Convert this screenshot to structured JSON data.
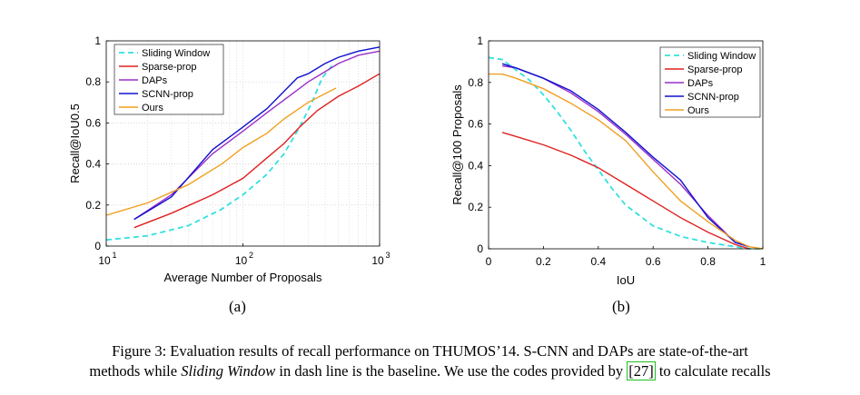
{
  "chart_data": [
    {
      "type": "line",
      "panel_label": "(a)",
      "xlabel": "Average Number of Proposals",
      "ylabel": "Recall@IoU0.5",
      "xscale": "log",
      "xlim": [
        10,
        1000
      ],
      "ylim": [
        0,
        1
      ],
      "x_ticks": [
        10,
        100,
        1000
      ],
      "x_tick_labels": [
        [
          "10",
          "1"
        ],
        [
          "10",
          "2"
        ],
        [
          "10",
          "3"
        ]
      ],
      "y_ticks": [
        0,
        0.2,
        0.4,
        0.6,
        0.8,
        1
      ],
      "y_tick_labels": [
        "0",
        "0.2",
        "0.4",
        "0.6",
        "0.8",
        "1"
      ],
      "grid": "dotted",
      "legend_position": "top-left",
      "series": [
        {
          "name": "Sliding Window",
          "color": "#33e0e0",
          "dash": true,
          "x": [
            10,
            20,
            40,
            70,
            100,
            150,
            200,
            260,
            320,
            380,
            450
          ],
          "y": [
            0.03,
            0.05,
            0.1,
            0.18,
            0.25,
            0.35,
            0.45,
            0.58,
            0.7,
            0.82,
            0.88
          ]
        },
        {
          "name": "Sparse-prop",
          "color": "#e02020",
          "dash": false,
          "x": [
            16,
            30,
            60,
            100,
            150,
            200,
            260,
            350,
            500,
            700,
            1000
          ],
          "y": [
            0.09,
            0.16,
            0.25,
            0.33,
            0.43,
            0.5,
            0.58,
            0.66,
            0.73,
            0.78,
            0.84
          ]
        },
        {
          "name": "DAPs",
          "color": "#9a2ec8",
          "dash": false,
          "x": [
            16,
            30,
            60,
            100,
            150,
            250,
            300,
            400,
            500,
            700,
            1000
          ],
          "y": [
            0.13,
            0.25,
            0.45,
            0.56,
            0.65,
            0.76,
            0.8,
            0.85,
            0.89,
            0.93,
            0.95
          ]
        },
        {
          "name": "SCNN-prop",
          "color": "#1010d0",
          "dash": false,
          "x": [
            16,
            30,
            60,
            100,
            150,
            250,
            300,
            400,
            500,
            700,
            1000
          ],
          "y": [
            0.13,
            0.24,
            0.47,
            0.58,
            0.67,
            0.82,
            0.84,
            0.89,
            0.92,
            0.95,
            0.97
          ]
        },
        {
          "name": "Ours",
          "color": "#f0a020",
          "dash": false,
          "x": [
            10,
            20,
            40,
            70,
            100,
            150,
            200,
            300,
            480
          ],
          "y": [
            0.15,
            0.21,
            0.3,
            0.4,
            0.48,
            0.55,
            0.62,
            0.7,
            0.77
          ]
        }
      ]
    },
    {
      "type": "line",
      "panel_label": "(b)",
      "xlabel": "IoU",
      "ylabel": "Recall@100 Proposals",
      "xlim": [
        0,
        1
      ],
      "ylim": [
        0,
        1
      ],
      "x_ticks": [
        0,
        0.2,
        0.4,
        0.6,
        0.8,
        1
      ],
      "x_tick_labels": [
        "0",
        "0.2",
        "0.4",
        "0.6",
        "0.8",
        "1"
      ],
      "y_ticks": [
        0,
        0.2,
        0.4,
        0.6,
        0.8,
        1
      ],
      "y_tick_labels": [
        "0",
        "0.2",
        "0.4",
        "0.6",
        "0.8",
        "1"
      ],
      "grid": "none",
      "legend_position": "top-right",
      "series": [
        {
          "name": "Sliding Window",
          "color": "#33e0e0",
          "dash": true,
          "x": [
            0,
            0.05,
            0.1,
            0.15,
            0.2,
            0.25,
            0.3,
            0.35,
            0.4,
            0.45,
            0.5,
            0.6,
            0.7,
            0.8,
            0.9,
            0.95,
            1.0
          ],
          "y": [
            0.92,
            0.91,
            0.86,
            0.81,
            0.74,
            0.66,
            0.57,
            0.47,
            0.38,
            0.29,
            0.21,
            0.11,
            0.06,
            0.03,
            0.01,
            0.0,
            0.0
          ]
        },
        {
          "name": "Sparse-prop",
          "color": "#e02020",
          "dash": false,
          "x": [
            0.05,
            0.1,
            0.2,
            0.3,
            0.4,
            0.5,
            0.6,
            0.7,
            0.8,
            0.9,
            0.95
          ],
          "y": [
            0.56,
            0.54,
            0.5,
            0.45,
            0.39,
            0.31,
            0.23,
            0.15,
            0.08,
            0.02,
            0.0
          ]
        },
        {
          "name": "DAPs",
          "color": "#9a2ec8",
          "dash": false,
          "x": [
            0.05,
            0.1,
            0.2,
            0.3,
            0.4,
            0.5,
            0.6,
            0.7,
            0.8,
            0.9,
            0.95
          ],
          "y": [
            0.88,
            0.87,
            0.82,
            0.75,
            0.66,
            0.55,
            0.43,
            0.31,
            0.16,
            0.03,
            0.01
          ]
        },
        {
          "name": "SCNN-prop",
          "color": "#1010d0",
          "dash": false,
          "x": [
            0.05,
            0.1,
            0.2,
            0.3,
            0.4,
            0.5,
            0.6,
            0.7,
            0.8,
            0.9,
            0.95
          ],
          "y": [
            0.89,
            0.87,
            0.82,
            0.76,
            0.67,
            0.56,
            0.44,
            0.33,
            0.15,
            0.03,
            0.01
          ]
        },
        {
          "name": "Ours",
          "color": "#f0a020",
          "dash": false,
          "x": [
            0,
            0.05,
            0.1,
            0.2,
            0.3,
            0.4,
            0.5,
            0.6,
            0.7,
            0.8,
            0.9,
            0.95,
            1.0
          ],
          "y": [
            0.84,
            0.84,
            0.82,
            0.77,
            0.7,
            0.62,
            0.52,
            0.37,
            0.23,
            0.13,
            0.04,
            0.01,
            0.0
          ]
        }
      ]
    }
  ],
  "caption": {
    "line1": "Figure 3: Evaluation results of recall performance on THUMOS’14. S-CNN and DAPs are state-of-the-art",
    "line2_a": "methods while ",
    "line2_em": "Sliding Window",
    "line2_b": " in dash line is the baseline. We use the codes provided by ",
    "line2_ref": "[27]",
    "line2_c": " to calculate recalls"
  }
}
